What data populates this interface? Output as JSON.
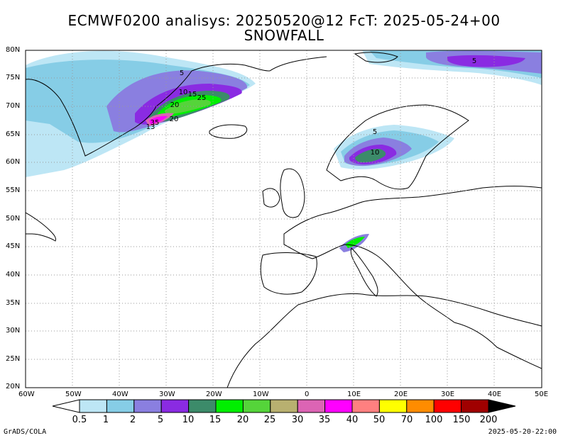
{
  "title": {
    "line1": "ECMWF0200 analisys: 20250520@12 FcT: 2025-05-24+00",
    "line2": "SNOWFALL"
  },
  "map": {
    "lon_range": [
      -60,
      50
    ],
    "lat_range": [
      20,
      80
    ],
    "background": "#ffffff",
    "grid": "dotted",
    "lon_ticks": [
      "60W",
      "50W",
      "40W",
      "30W",
      "20W",
      "10W",
      "0",
      "10E",
      "20E",
      "30E",
      "40E",
      "50E"
    ],
    "lat_ticks": [
      "80N",
      "75N",
      "70N",
      "65N",
      "60N",
      "55N",
      "50N",
      "45N",
      "40N",
      "35N",
      "30N",
      "25N",
      "20N"
    ],
    "contour_labels": [
      "5",
      "10",
      "15",
      "25",
      "20",
      "20",
      "35",
      "13",
      "5",
      "10",
      "5"
    ]
  },
  "colorbar": {
    "levels": [
      "0.5",
      "1",
      "2",
      "5",
      "10",
      "15",
      "20",
      "25",
      "30",
      "35",
      "40",
      "50",
      "70",
      "100",
      "150",
      "200"
    ],
    "colors": [
      "#ffffff",
      "#bde6f5",
      "#86cde6",
      "#8a7fe0",
      "#8a2be2",
      "#3c8b6a",
      "#00ef00",
      "#55d43a",
      "#b8b070",
      "#dc64b4",
      "#ff00ff",
      "#ff8080",
      "#ffff00",
      "#ff8c00",
      "#ff0000",
      "#a00000",
      "#000000"
    ]
  },
  "footer": {
    "left": "GrADS/COLA",
    "right": "2025-05-20-22:00"
  }
}
